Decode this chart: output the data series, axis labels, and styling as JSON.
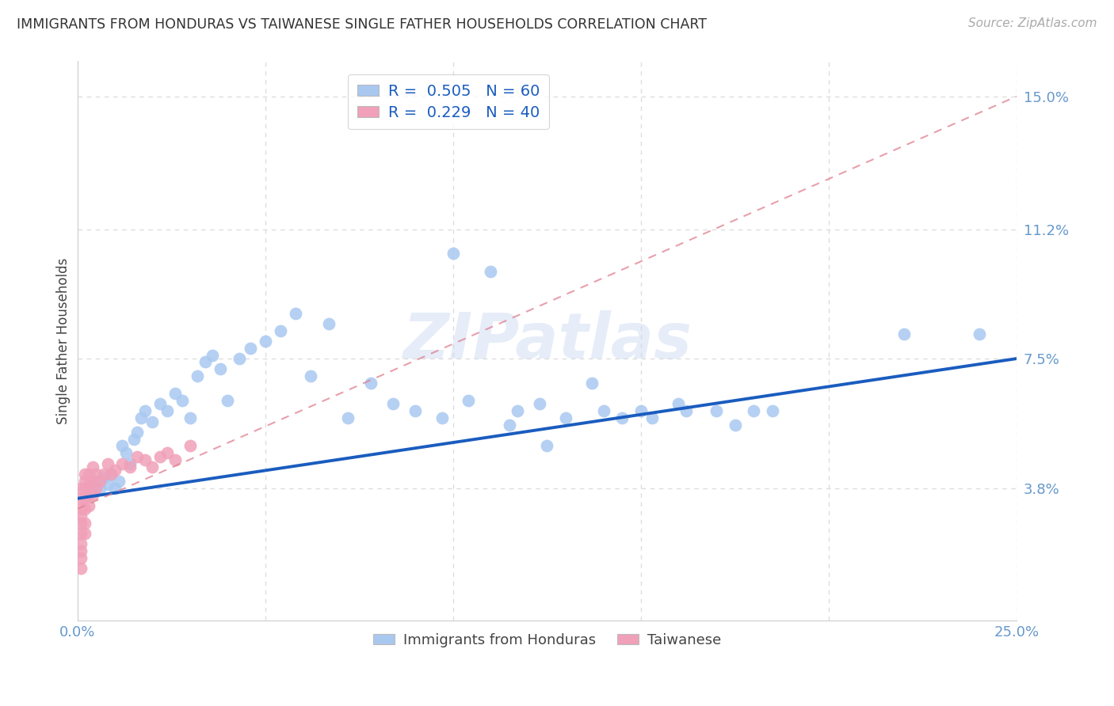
{
  "title": "IMMIGRANTS FROM HONDURAS VS TAIWANESE SINGLE FATHER HOUSEHOLDS CORRELATION CHART",
  "source": "Source: ZipAtlas.com",
  "ylabel_label": "Single Father Households",
  "xlim": [
    0.0,
    0.25
  ],
  "ylim": [
    0.0,
    0.16
  ],
  "ytick_vals": [
    0.038,
    0.075,
    0.112,
    0.15
  ],
  "ytick_labels": [
    "3.8%",
    "7.5%",
    "11.2%",
    "15.0%"
  ],
  "legend1_r": "0.505",
  "legend1_n": "60",
  "legend2_r": "0.229",
  "legend2_n": "40",
  "blue_color": "#a8c8f0",
  "blue_line_color": "#1a5cbf",
  "pink_color": "#f0a0b8",
  "pink_line_color": "#e08090",
  "watermark": "ZIPatlas",
  "blue_scatter_x": [
    0.003,
    0.004,
    0.005,
    0.006,
    0.007,
    0.008,
    0.009,
    0.01,
    0.011,
    0.012,
    0.013,
    0.014,
    0.015,
    0.016,
    0.017,
    0.018,
    0.02,
    0.022,
    0.024,
    0.026,
    0.028,
    0.03,
    0.032,
    0.034,
    0.036,
    0.038,
    0.04,
    0.043,
    0.046,
    0.05,
    0.054,
    0.058,
    0.062,
    0.067,
    0.072,
    0.078,
    0.084,
    0.09,
    0.097,
    0.104,
    0.11,
    0.117,
    0.123,
    0.13,
    0.137,
    0.145,
    0.153,
    0.162,
    0.17,
    0.18,
    0.14,
    0.15,
    0.16,
    0.1,
    0.115,
    0.125,
    0.175,
    0.185,
    0.22,
    0.24
  ],
  "blue_scatter_y": [
    0.038,
    0.037,
    0.04,
    0.038,
    0.041,
    0.039,
    0.042,
    0.038,
    0.04,
    0.05,
    0.048,
    0.045,
    0.052,
    0.054,
    0.058,
    0.06,
    0.057,
    0.062,
    0.06,
    0.065,
    0.063,
    0.058,
    0.07,
    0.074,
    0.076,
    0.072,
    0.063,
    0.075,
    0.078,
    0.08,
    0.083,
    0.088,
    0.07,
    0.085,
    0.058,
    0.068,
    0.062,
    0.06,
    0.058,
    0.063,
    0.1,
    0.06,
    0.062,
    0.058,
    0.068,
    0.058,
    0.058,
    0.06,
    0.06,
    0.06,
    0.06,
    0.06,
    0.062,
    0.105,
    0.056,
    0.05,
    0.056,
    0.06,
    0.082,
    0.082
  ],
  "pink_scatter_x": [
    0.001,
    0.001,
    0.001,
    0.001,
    0.001,
    0.001,
    0.001,
    0.001,
    0.001,
    0.001,
    0.002,
    0.002,
    0.002,
    0.002,
    0.002,
    0.002,
    0.002,
    0.003,
    0.003,
    0.003,
    0.003,
    0.004,
    0.004,
    0.004,
    0.005,
    0.005,
    0.006,
    0.007,
    0.008,
    0.009,
    0.01,
    0.012,
    0.014,
    0.016,
    0.018,
    0.02,
    0.022,
    0.024,
    0.026,
    0.03
  ],
  "pink_scatter_y": [
    0.015,
    0.018,
    0.02,
    0.022,
    0.025,
    0.028,
    0.03,
    0.032,
    0.035,
    0.038,
    0.025,
    0.028,
    0.032,
    0.035,
    0.038,
    0.04,
    0.042,
    0.033,
    0.036,
    0.039,
    0.042,
    0.036,
    0.04,
    0.044,
    0.038,
    0.042,
    0.04,
    0.042,
    0.045,
    0.042,
    0.043,
    0.045,
    0.044,
    0.047,
    0.046,
    0.044,
    0.047,
    0.048,
    0.046,
    0.05
  ],
  "grid_color": "#dddddd",
  "background_color": "#ffffff",
  "title_color": "#333333",
  "tick_color": "#6699cc"
}
